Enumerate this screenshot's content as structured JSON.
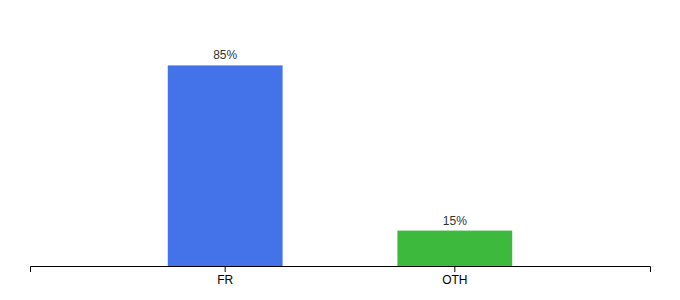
{
  "chart_data": {
    "type": "bar",
    "categories": [
      "FR",
      "OTH"
    ],
    "values": [
      85,
      15
    ],
    "value_labels": [
      "85%",
      "15%"
    ],
    "colors": [
      "#4472e8",
      "#3dba3d"
    ],
    "ylim": [
      0,
      100
    ],
    "data_labels": true,
    "tick_labels": "x"
  }
}
